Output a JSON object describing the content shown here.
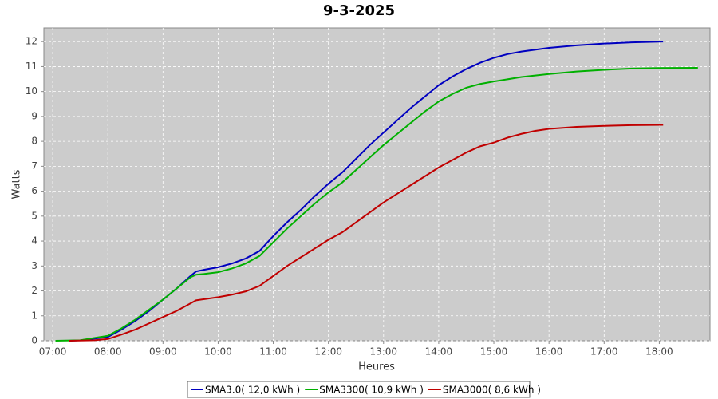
{
  "chart_data": {
    "type": "line",
    "title": "9-3-2025",
    "x_label": "Heures",
    "y_label": "Watts",
    "xlim": [
      6.84,
      18.92
    ],
    "ylim": [
      0,
      12.55
    ],
    "xticks": [
      {
        "value": 7,
        "label": "07:00"
      },
      {
        "value": 8,
        "label": "08:00"
      },
      {
        "value": 9,
        "label": "09:00"
      },
      {
        "value": 10,
        "label": "10:00"
      },
      {
        "value": 11,
        "label": "11:00"
      },
      {
        "value": 12,
        "label": "12:00"
      },
      {
        "value": 13,
        "label": "13:00"
      },
      {
        "value": 14,
        "label": "14:00"
      },
      {
        "value": 15,
        "label": "15:00"
      },
      {
        "value": 16,
        "label": "16:00"
      },
      {
        "value": 17,
        "label": "17:00"
      },
      {
        "value": 18,
        "label": "18:00"
      }
    ],
    "yticks": [
      0,
      1,
      2,
      3,
      4,
      5,
      6,
      7,
      8,
      9,
      10,
      11,
      12
    ],
    "grid": true,
    "legend": "bottom",
    "series": [
      {
        "name": "SMA3.0( 12,0 kWh )",
        "color": "#0000c0",
        "x": [
          7.3,
          7.5,
          8.0,
          8.25,
          8.5,
          8.75,
          9.0,
          9.25,
          9.5,
          9.6,
          9.75,
          10.0,
          10.25,
          10.5,
          10.75,
          11.0,
          11.25,
          11.5,
          11.75,
          12.0,
          12.25,
          12.5,
          12.75,
          13.0,
          13.25,
          13.5,
          13.75,
          14.0,
          14.25,
          14.5,
          14.75,
          15.0,
          15.25,
          15.5,
          16.0,
          16.5,
          17.0,
          17.5,
          18.07
        ],
        "values": [
          0,
          0.02,
          0.15,
          0.45,
          0.8,
          1.2,
          1.65,
          2.1,
          2.6,
          2.78,
          2.85,
          2.95,
          3.1,
          3.3,
          3.6,
          4.2,
          4.75,
          5.25,
          5.8,
          6.3,
          6.75,
          7.3,
          7.85,
          8.35,
          8.85,
          9.35,
          9.8,
          10.25,
          10.6,
          10.9,
          11.15,
          11.35,
          11.5,
          11.6,
          11.75,
          11.85,
          11.92,
          11.97,
          12.0
        ]
      },
      {
        "name": "SMA3300( 10,9 kWh )",
        "color": "#00b000",
        "x": [
          7.05,
          7.5,
          8.0,
          8.25,
          8.5,
          8.75,
          9.0,
          9.25,
          9.5,
          9.6,
          9.75,
          10.0,
          10.25,
          10.5,
          10.75,
          11.0,
          11.25,
          11.5,
          11.75,
          12.0,
          12.25,
          12.5,
          12.75,
          13.0,
          13.25,
          13.5,
          13.75,
          14.0,
          14.25,
          14.5,
          14.75,
          15.0,
          15.5,
          16.0,
          16.5,
          17.0,
          17.5,
          18.0,
          18.7
        ],
        "values": [
          0,
          0.02,
          0.2,
          0.5,
          0.85,
          1.25,
          1.65,
          2.1,
          2.55,
          2.65,
          2.68,
          2.75,
          2.9,
          3.1,
          3.4,
          3.95,
          4.5,
          5.0,
          5.5,
          5.95,
          6.35,
          6.85,
          7.35,
          7.85,
          8.3,
          8.75,
          9.2,
          9.6,
          9.9,
          10.15,
          10.3,
          10.4,
          10.58,
          10.7,
          10.8,
          10.87,
          10.92,
          10.94,
          10.95
        ]
      },
      {
        "name": "SMA3000( 8,6 kWh )",
        "color": "#c00000",
        "x": [
          7.3,
          7.75,
          8.0,
          8.25,
          8.5,
          8.75,
          9.0,
          9.25,
          9.5,
          9.6,
          9.75,
          10.0,
          10.25,
          10.5,
          10.75,
          11.0,
          11.25,
          11.5,
          11.75,
          12.0,
          12.25,
          12.5,
          12.75,
          13.0,
          13.25,
          13.5,
          13.75,
          14.0,
          14.25,
          14.5,
          14.75,
          15.0,
          15.25,
          15.5,
          15.75,
          16.0,
          16.5,
          17.0,
          17.5,
          18.07
        ],
        "values": [
          0,
          0.02,
          0.07,
          0.25,
          0.45,
          0.7,
          0.95,
          1.2,
          1.5,
          1.62,
          1.67,
          1.75,
          1.85,
          1.98,
          2.2,
          2.6,
          3.0,
          3.35,
          3.7,
          4.05,
          4.35,
          4.75,
          5.15,
          5.55,
          5.9,
          6.25,
          6.6,
          6.95,
          7.25,
          7.55,
          7.8,
          7.95,
          8.15,
          8.3,
          8.42,
          8.5,
          8.58,
          8.62,
          8.65,
          8.66
        ]
      }
    ]
  }
}
